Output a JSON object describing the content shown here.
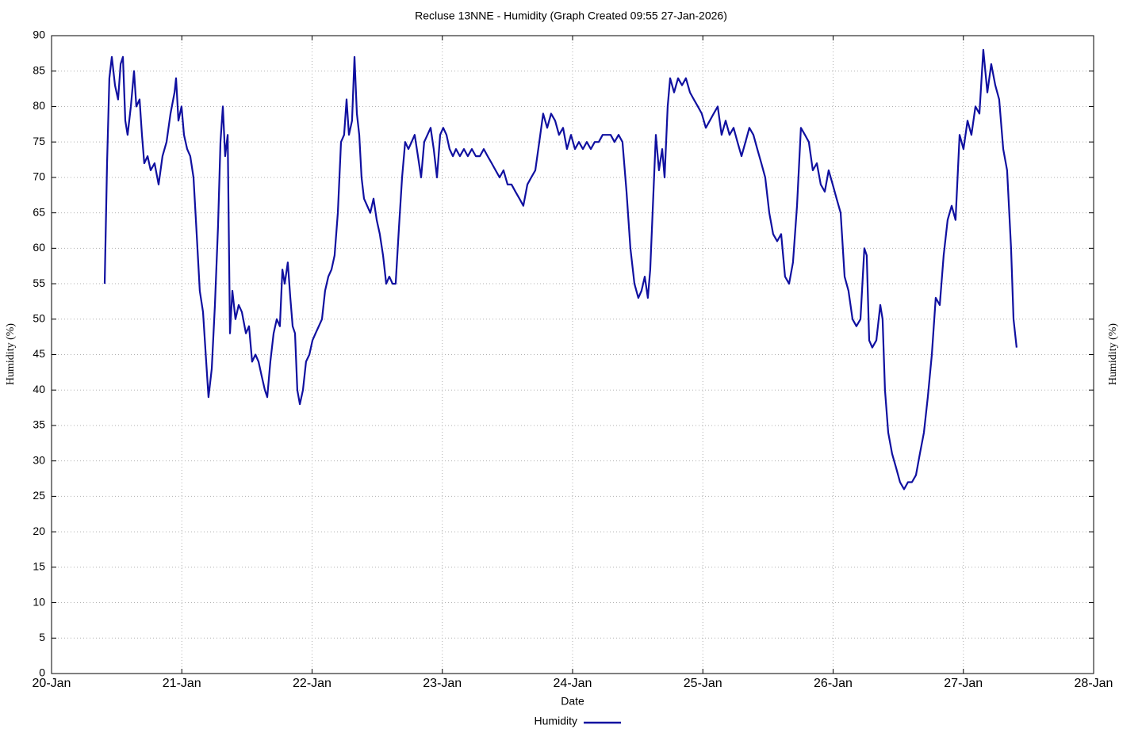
{
  "chart_data": {
    "type": "line",
    "title": "Recluse 13NNE - Humidity (Graph Created 09:55 27-Jan-2026)",
    "xlabel": "Date",
    "ylabel": "Humidity (%)",
    "ylabel_right": "Humidity (%)",
    "xlim": [
      20,
      28
    ],
    "xticks": [
      {
        "value": 20,
        "label": "20-Jan"
      },
      {
        "value": 21,
        "label": "21-Jan"
      },
      {
        "value": 22,
        "label": "22-Jan"
      },
      {
        "value": 23,
        "label": "23-Jan"
      },
      {
        "value": 24,
        "label": "24-Jan"
      },
      {
        "value": 25,
        "label": "25-Jan"
      },
      {
        "value": 26,
        "label": "26-Jan"
      },
      {
        "value": 27,
        "label": "27-Jan"
      },
      {
        "value": 28,
        "label": "28-Jan"
      }
    ],
    "ylim": [
      0,
      90
    ],
    "yticks": [
      0,
      5,
      10,
      15,
      20,
      25,
      30,
      35,
      40,
      45,
      50,
      55,
      60,
      65,
      70,
      75,
      80,
      85,
      90
    ],
    "grid": true,
    "legend": "bottom",
    "x": [
      20.408,
      20.426,
      20.444,
      20.463,
      20.487,
      20.511,
      20.53,
      20.548,
      20.566,
      20.584,
      20.609,
      20.633,
      20.651,
      20.676,
      20.694,
      20.712,
      20.737,
      20.761,
      20.791,
      20.822,
      20.852,
      20.883,
      20.913,
      20.944,
      20.956,
      20.974,
      20.998,
      21.017,
      21.041,
      21.065,
      21.09,
      21.114,
      21.138,
      21.163,
      21.187,
      21.205,
      21.23,
      21.254,
      21.278,
      21.297,
      21.315,
      21.333,
      21.352,
      21.37,
      21.388,
      21.412,
      21.437,
      21.461,
      21.492,
      21.516,
      21.54,
      21.565,
      21.589,
      21.613,
      21.638,
      21.656,
      21.68,
      21.705,
      21.729,
      21.753,
      21.772,
      21.79,
      21.814,
      21.833,
      21.851,
      21.869,
      21.887,
      21.906,
      21.93,
      21.954,
      21.979,
      22.003,
      22.027,
      22.052,
      22.076,
      22.1,
      22.125,
      22.149,
      22.173,
      22.198,
      22.222,
      22.246,
      22.265,
      22.283,
      22.307,
      22.326,
      22.344,
      22.362,
      22.38,
      22.399,
      22.423,
      22.447,
      22.472,
      22.496,
      22.52,
      22.545,
      22.569,
      22.593,
      22.618,
      22.642,
      22.667,
      22.691,
      22.715,
      22.74,
      22.764,
      22.788,
      22.813,
      22.837,
      22.861,
      22.886,
      22.91,
      22.934,
      22.959,
      22.983,
      23.007,
      23.032,
      23.056,
      23.081,
      23.105,
      23.135,
      23.166,
      23.196,
      23.227,
      23.257,
      23.288,
      23.318,
      23.348,
      23.379,
      23.409,
      23.44,
      23.47,
      23.501,
      23.531,
      23.561,
      23.592,
      23.622,
      23.653,
      23.683,
      23.714,
      23.744,
      23.774,
      23.805,
      23.835,
      23.866,
      23.896,
      23.927,
      23.957,
      23.988,
      24.018,
      24.049,
      24.079,
      24.109,
      24.14,
      24.17,
      24.201,
      24.231,
      24.262,
      24.292,
      24.322,
      24.353,
      24.383,
      24.414,
      24.444,
      24.475,
      24.505,
      24.529,
      24.554,
      24.578,
      24.596,
      24.621,
      24.639,
      24.663,
      24.688,
      24.706,
      24.73,
      24.749,
      24.779,
      24.81,
      24.84,
      24.87,
      24.901,
      24.931,
      24.962,
      24.992,
      25.023,
      25.053,
      25.083,
      25.114,
      25.144,
      25.175,
      25.205,
      25.236,
      25.266,
      25.297,
      25.327,
      25.357,
      25.388,
      25.418,
      25.449,
      25.479,
      25.51,
      25.54,
      25.571,
      25.601,
      25.631,
      25.662,
      25.692,
      25.723,
      25.753,
      25.784,
      25.814,
      25.844,
      25.875,
      25.905,
      25.936,
      25.966,
      25.997,
      26.027,
      26.058,
      26.088,
      26.118,
      26.149,
      26.179,
      26.21,
      26.24,
      26.258,
      26.277,
      26.301,
      26.332,
      26.362,
      26.38,
      26.398,
      26.423,
      26.453,
      26.484,
      26.514,
      26.545,
      26.575,
      26.605,
      26.636,
      26.666,
      26.697,
      26.727,
      26.758,
      26.788,
      26.819,
      26.849,
      26.879,
      26.91,
      26.94,
      26.971,
      27.001,
      27.032,
      27.062,
      27.093,
      27.123,
      27.153,
      27.184,
      27.214,
      27.245,
      27.275,
      27.306,
      27.336,
      27.366,
      27.385,
      27.409
    ],
    "series": [
      {
        "name": "Humidity",
        "color": "#1010a0",
        "values": [
          55,
          72,
          84,
          87,
          83,
          81,
          86,
          87,
          78,
          76,
          80,
          85,
          80,
          81,
          76,
          72,
          73,
          71,
          72,
          69,
          73,
          75,
          79,
          82,
          84,
          78,
          80,
          76,
          74,
          73,
          70,
          62,
          54,
          51,
          44,
          39,
          43,
          52,
          63,
          75,
          80,
          73,
          76,
          48,
          54,
          50,
          52,
          51,
          48,
          49,
          44,
          45,
          44,
          42,
          40,
          39,
          44,
          48,
          50,
          49,
          57,
          55,
          58,
          53,
          49,
          48,
          40,
          38,
          40,
          44,
          45,
          47,
          48,
          49,
          50,
          54,
          56,
          57,
          59,
          65,
          75,
          76,
          81,
          76,
          78,
          87,
          79,
          76,
          70,
          67,
          66,
          65,
          67,
          64,
          62,
          59,
          55,
          56,
          55,
          55,
          63,
          70,
          75,
          74,
          75,
          76,
          73,
          70,
          75,
          76,
          77,
          74,
          70,
          76,
          77,
          76,
          74,
          73,
          74,
          73,
          74,
          73,
          74,
          73,
          73,
          74,
          73,
          72,
          71,
          70,
          71,
          69,
          69,
          68,
          67,
          66,
          69,
          70,
          71,
          75,
          79,
          77,
          79,
          78,
          76,
          77,
          74,
          76,
          74,
          75,
          74,
          75,
          74,
          75,
          75,
          76,
          76,
          76,
          75,
          76,
          75,
          68,
          60,
          55,
          53,
          54,
          56,
          53,
          57,
          68,
          76,
          71,
          74,
          70,
          80,
          84,
          82,
          84,
          83,
          84,
          82,
          81,
          80,
          79,
          77,
          78,
          79,
          80,
          76,
          78,
          76,
          77,
          75,
          73,
          75,
          77,
          76,
          74,
          72,
          70,
          65,
          62,
          61,
          62,
          56,
          55,
          58,
          66,
          77,
          76,
          75,
          71,
          72,
          69,
          68,
          71,
          69,
          67,
          65,
          56,
          54,
          50,
          49,
          50,
          60,
          59,
          47,
          46,
          47,
          52,
          50,
          40,
          34,
          31,
          29,
          27,
          26,
          27,
          27,
          28,
          31,
          34,
          39,
          45,
          53,
          52,
          59,
          64,
          66,
          64,
          76,
          74,
          78,
          76,
          80,
          79,
          88,
          82,
          86,
          83,
          81,
          74,
          71,
          60,
          50,
          46
        ]
      }
    ]
  }
}
